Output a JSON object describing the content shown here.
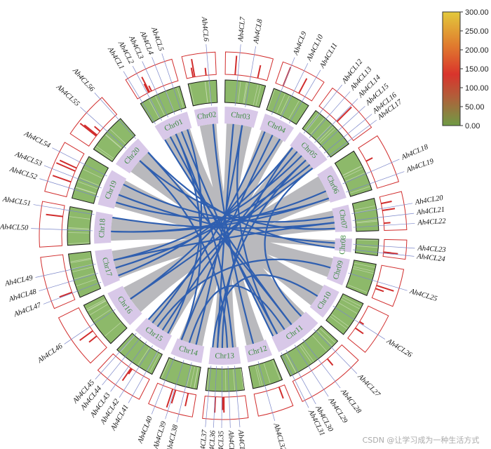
{
  "chromosomes": [
    {
      "label": "Chr01",
      "size": 1.05
    },
    {
      "label": "Chr02",
      "size": 0.7
    },
    {
      "label": "Chr03",
      "size": 1.0
    },
    {
      "label": "Chr04",
      "size": 0.95
    },
    {
      "label": "Chr05",
      "size": 1.15
    },
    {
      "label": "Chr06",
      "size": 1.05
    },
    {
      "label": "Chr07",
      "size": 0.8
    },
    {
      "label": "Chr08",
      "size": 0.4
    },
    {
      "label": "Chr09",
      "size": 0.8
    },
    {
      "label": "Chr10",
      "size": 0.9
    },
    {
      "label": "Chr11",
      "size": 1.45
    },
    {
      "label": "Chr12",
      "size": 0.75
    },
    {
      "label": "Chr13",
      "size": 0.95
    },
    {
      "label": "Chr14",
      "size": 0.95
    },
    {
      "label": "Chr15",
      "size": 1.05
    },
    {
      "label": "Chr16",
      "size": 1.15
    },
    {
      "label": "Chr17",
      "size": 1.1
    },
    {
      "label": "Chr18",
      "size": 0.95
    },
    {
      "label": "Chr19",
      "size": 1.1
    },
    {
      "label": "Chr20",
      "size": 1.0
    }
  ],
  "genes": [
    {
      "label": "Ah4CL1",
      "chr": 1,
      "pos": 0.05
    },
    {
      "label": "Ah4CL2",
      "chr": 1,
      "pos": 0.25
    },
    {
      "label": "Ah4CL3",
      "chr": 1,
      "pos": 0.45
    },
    {
      "label": "Ah4CL4",
      "chr": 1,
      "pos": 0.65
    },
    {
      "label": "Ah4CL5",
      "chr": 1,
      "pos": 0.85
    },
    {
      "label": "Ah4CL6",
      "chr": 2,
      "pos": 0.75
    },
    {
      "label": "Ah4CL7",
      "chr": 3,
      "pos": 0.3
    },
    {
      "label": "Ah4CL8",
      "chr": 3,
      "pos": 0.6
    },
    {
      "label": "Ah4CL9",
      "chr": 4,
      "pos": 0.2
    },
    {
      "label": "Ah4CL10",
      "chr": 4,
      "pos": 0.5
    },
    {
      "label": "Ah4CL11",
      "chr": 4,
      "pos": 0.8
    },
    {
      "label": "Ah4CL12",
      "chr": 5,
      "pos": 0.1
    },
    {
      "label": "Ah4CL13",
      "chr": 5,
      "pos": 0.28
    },
    {
      "label": "Ah4CL14",
      "chr": 5,
      "pos": 0.46
    },
    {
      "label": "Ah4CL15",
      "chr": 5,
      "pos": 0.64
    },
    {
      "label": "Ah4CL16",
      "chr": 5,
      "pos": 0.82
    },
    {
      "label": "Ah4CL17",
      "chr": 5,
      "pos": 0.95
    },
    {
      "label": "Ah4CL18",
      "chr": 6,
      "pos": 0.6
    },
    {
      "label": "Ah4CL19",
      "chr": 6,
      "pos": 0.85
    },
    {
      "label": "Ah4CL20",
      "chr": 7,
      "pos": 0.35
    },
    {
      "label": "Ah4CL21",
      "chr": 7,
      "pos": 0.6
    },
    {
      "label": "Ah4CL22",
      "chr": 7,
      "pos": 0.85
    },
    {
      "label": "Ah4CL23",
      "chr": 8,
      "pos": 0.4
    },
    {
      "label": "Ah4CL24",
      "chr": 8,
      "pos": 0.8
    },
    {
      "label": "Ah4CL25",
      "chr": 9,
      "pos": 0.5
    },
    {
      "label": "Ah4CL26",
      "chr": 10,
      "pos": 0.5
    },
    {
      "label": "Ah4CL27",
      "chr": 11,
      "pos": 0.15
    },
    {
      "label": "Ah4CL28",
      "chr": 11,
      "pos": 0.45
    },
    {
      "label": "Ah4CL29",
      "chr": 11,
      "pos": 0.65
    },
    {
      "label": "Ah4CL30",
      "chr": 11,
      "pos": 0.85
    },
    {
      "label": "Ah4CL31",
      "chr": 11,
      "pos": 0.96
    },
    {
      "label": "Ah4CL32",
      "chr": 12,
      "pos": 0.6
    },
    {
      "label": "Ah4CL33",
      "chr": 13,
      "pos": 0.2
    },
    {
      "label": "Ah4CL34",
      "chr": 13,
      "pos": 0.4
    },
    {
      "label": "Ah4CL35",
      "chr": 13,
      "pos": 0.58
    },
    {
      "label": "Ah4CL36",
      "chr": 13,
      "pos": 0.75
    },
    {
      "label": "Ah4CL37",
      "chr": 13,
      "pos": 0.92
    },
    {
      "label": "Ah4CL38",
      "chr": 14,
      "pos": 0.3
    },
    {
      "label": "Ah4CL39",
      "chr": 14,
      "pos": 0.55
    },
    {
      "label": "Ah4CL40",
      "chr": 14,
      "pos": 0.85
    },
    {
      "label": "Ah4CL41",
      "chr": 15,
      "pos": 0.15
    },
    {
      "label": "Ah4CL42",
      "chr": 15,
      "pos": 0.35
    },
    {
      "label": "Ah4CL43",
      "chr": 15,
      "pos": 0.55
    },
    {
      "label": "Ah4CL44",
      "chr": 15,
      "pos": 0.75
    },
    {
      "label": "Ah4CL45",
      "chr": 15,
      "pos": 0.92
    },
    {
      "label": "Ah4CL46",
      "chr": 16,
      "pos": 0.55
    },
    {
      "label": "Ah4CL47",
      "chr": 17,
      "pos": 0.15
    },
    {
      "label": "Ah4CL48",
      "chr": 17,
      "pos": 0.4
    },
    {
      "label": "Ah4CL49",
      "chr": 17,
      "pos": 0.65
    },
    {
      "label": "Ah4CL50",
      "chr": 18,
      "pos": 0.4
    },
    {
      "label": "Ah4CL51",
      "chr": 18,
      "pos": 0.9
    },
    {
      "label": "Ah4CL52",
      "chr": 19,
      "pos": 0.2
    },
    {
      "label": "Ah4CL53",
      "chr": 19,
      "pos": 0.45
    },
    {
      "label": "Ah4CL54",
      "chr": 19,
      "pos": 0.8
    },
    {
      "label": "Ah4CL55",
      "chr": 20,
      "pos": 0.55
    },
    {
      "label": "Ah4CL56",
      "chr": 20,
      "pos": 0.95
    }
  ],
  "synteny_blocks": [
    {
      "a": 1,
      "b": 11
    },
    {
      "a": 2,
      "b": 12
    },
    {
      "a": 3,
      "b": 13
    },
    {
      "a": 4,
      "b": 14
    },
    {
      "a": 5,
      "b": 15
    },
    {
      "a": 6,
      "b": 16
    },
    {
      "a": 7,
      "b": 17
    },
    {
      "a": 8,
      "b": 18
    },
    {
      "a": 9,
      "b": 19
    },
    {
      "a": 10,
      "b": 20
    }
  ],
  "gene_pairs": [
    {
      "a": "Ah4CL1",
      "b": "Ah4CL28"
    },
    {
      "a": "Ah4CL2",
      "b": "Ah4CL30"
    },
    {
      "a": "Ah4CL3",
      "b": "Ah4CL33"
    },
    {
      "a": "Ah4CL4",
      "b": "Ah4CL31"
    },
    {
      "a": "Ah4CL5",
      "b": "Ah4CL41"
    },
    {
      "a": "Ah4CL6",
      "b": "Ah4CL32"
    },
    {
      "a": "Ah4CL7",
      "b": "Ah4CL36"
    },
    {
      "a": "Ah4CL8",
      "b": "Ah4CL38"
    },
    {
      "a": "Ah4CL9",
      "b": "Ah4CL44"
    },
    {
      "a": "Ah4CL10",
      "b": "Ah4CL40"
    },
    {
      "a": "Ah4CL11",
      "b": "Ah4CL46"
    },
    {
      "a": "Ah4CL12",
      "b": "Ah4CL47"
    },
    {
      "a": "Ah4CL13",
      "b": "Ah4CL42"
    },
    {
      "a": "Ah4CL14",
      "b": "Ah4CL49"
    },
    {
      "a": "Ah4CL15",
      "b": "Ah4CL45"
    },
    {
      "a": "Ah4CL16",
      "b": "Ah4CL48"
    },
    {
      "a": "Ah4CL17",
      "b": "Ah4CL27"
    },
    {
      "a": "Ah4CL18",
      "b": "Ah4CL50"
    },
    {
      "a": "Ah4CL19",
      "b": "Ah4CL52"
    },
    {
      "a": "Ah4CL20",
      "b": "Ah4CL54"
    },
    {
      "a": "Ah4CL21",
      "b": "Ah4CL51"
    },
    {
      "a": "Ah4CL22",
      "b": "Ah4CL55"
    },
    {
      "a": "Ah4CL23",
      "b": "Ah4CL53"
    },
    {
      "a": "Ah4CL24",
      "b": "Ah4CL56"
    },
    {
      "a": "Ah4CL25",
      "b": "Ah4CL43"
    },
    {
      "a": "Ah4CL26",
      "b": "Ah4CL37"
    },
    {
      "a": "Ah4CL29",
      "b": "Ah4CL39"
    },
    {
      "a": "Ah4CL34",
      "b": "Ah4CL55"
    },
    {
      "a": "Ah4CL35",
      "b": "Ah4CL12"
    },
    {
      "a": "Ah4CL46",
      "b": "Ah4CL17"
    },
    {
      "a": "Ah4CL56",
      "b": "Ah4CL28"
    },
    {
      "a": "Ah4CL40",
      "b": "Ah4CL3"
    },
    {
      "a": "Ah4CL49",
      "b": "Ah4CL21"
    },
    {
      "a": "Ah4CL8",
      "b": "Ah4CL30"
    },
    {
      "a": "Ah4CL50",
      "b": "Ah4CL19"
    },
    {
      "a": "Ah4CL36",
      "b": "Ah4CL15"
    }
  ],
  "legend": {
    "ticks": [
      "300.00",
      "250.00",
      "200.00",
      "150.00",
      "100.00",
      "50.00",
      "0.00"
    ],
    "max": 300,
    "colors": [
      "#e3c93c",
      "#e07a2e",
      "#d9342c",
      "#b05f3a",
      "#6f9b45"
    ]
  },
  "watermark": "CSDN @让学习成为一种生活方式",
  "colors": {
    "ideogram_fill": "#d8c8e8",
    "ideogram_label": "#3d8b40",
    "synteny_fill": "#b9b9bd",
    "link_color": "#2f5fb0",
    "density_fill": "#8db96a",
    "density_stroke": "#1a1a1a",
    "hist_stroke": "#d12d2d",
    "gene_line": "#7b86c9"
  }
}
